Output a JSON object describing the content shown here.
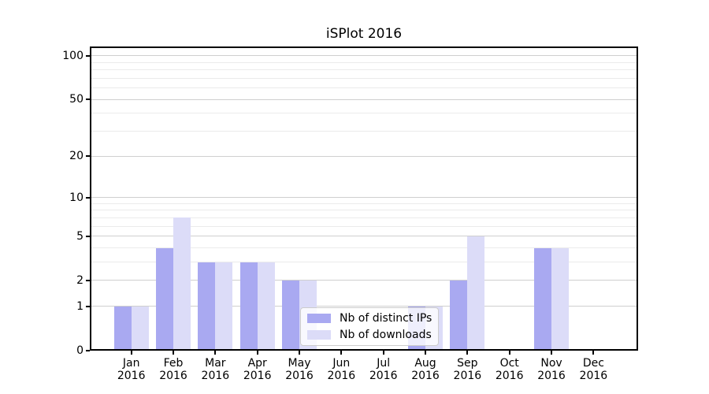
{
  "title": "iSPlot 2016",
  "chart_data": {
    "type": "bar",
    "title": "iSPlot 2016",
    "categories": [
      "Jan\n2016",
      "Feb\n2016",
      "Mar\n2016",
      "Apr\n2016",
      "May\n2016",
      "Jun\n2016",
      "Jul\n2016",
      "Aug\n2016",
      "Sep\n2016",
      "Oct\n2016",
      "Nov\n2016",
      "Dec\n2016"
    ],
    "series": [
      {
        "name": "Nb of distinct IPs",
        "color": "#a9a9f1",
        "values": [
          1,
          4,
          3,
          3,
          2,
          0,
          0,
          1,
          2,
          0,
          4,
          0
        ]
      },
      {
        "name": "Nb of downloads",
        "color": "#dcdcf8",
        "values": [
          1,
          7,
          3,
          3,
          2,
          0,
          0,
          1,
          5,
          0,
          4,
          0
        ]
      }
    ],
    "xlabel": "",
    "ylabel": "",
    "yscale": "log1p",
    "ylim": [
      0,
      116
    ],
    "yticks": [
      0,
      1,
      2,
      5,
      10,
      20,
      50,
      100
    ],
    "minor_yticks": [
      3,
      4,
      6,
      7,
      8,
      9,
      30,
      40,
      60,
      70,
      80,
      90
    ],
    "grid": true,
    "legend_position": "lower-center-right",
    "major_grid_color": "#cfcfcf",
    "minor_grid_color": "#ebebeb"
  }
}
